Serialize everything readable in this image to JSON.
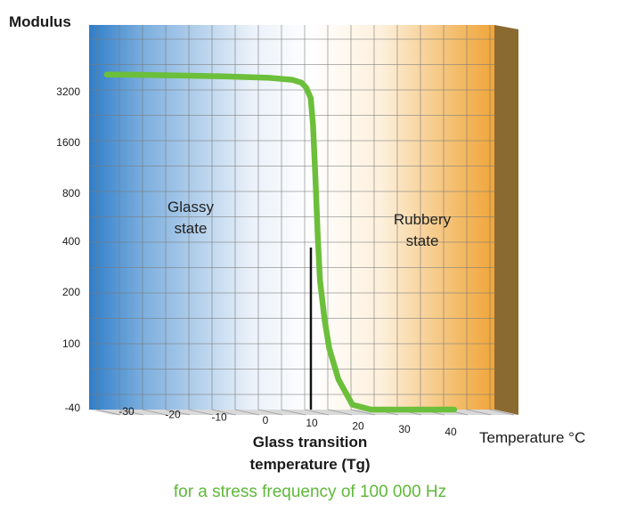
{
  "chart_data": {
    "type": "line",
    "title": "",
    "ylabel": "Modulus",
    "xlabel": "Temperature °C",
    "y_scale": "log",
    "y_ticks": [
      "3200",
      "1600",
      "800",
      "400",
      "200",
      "100",
      "-40"
    ],
    "x_ticks": [
      "-30",
      "-20",
      "-10",
      "0",
      "10",
      "20",
      "30",
      "40"
    ],
    "xlim": [
      -35,
      40
    ],
    "series": [
      {
        "x": [
          -35,
          -30,
          -20,
          -10,
          0,
          5,
          7,
          8,
          9,
          9.5,
          10,
          10.5,
          11,
          12,
          13,
          15,
          18,
          22,
          26,
          30,
          35,
          40
        ],
        "y": [
          4000,
          3990,
          3950,
          3900,
          3820,
          3720,
          3580,
          3350,
          2900,
          2000,
          1000,
          450,
          240,
          140,
          95,
          62,
          44,
          35,
          31,
          29,
          28,
          27.5
        ]
      }
    ],
    "annotations": [
      {
        "text_lines": [
          "Glassy",
          "state"
        ]
      },
      {
        "text_lines": [
          "Rubbery",
          "state"
        ]
      },
      {
        "text_lines": [
          "Glass transition",
          "temperature (Tg)"
        ],
        "x": 10
      }
    ],
    "subtitle": "for a stress frequency of 100 000 Hz",
    "colors": {
      "curve": "#6cbf3a",
      "cold": "#2f7ec9",
      "warm": "#f0a53a",
      "side_panel": "#8a6a30",
      "grid": "#7a7a7a",
      "subtitle": "#5fb83a"
    }
  }
}
